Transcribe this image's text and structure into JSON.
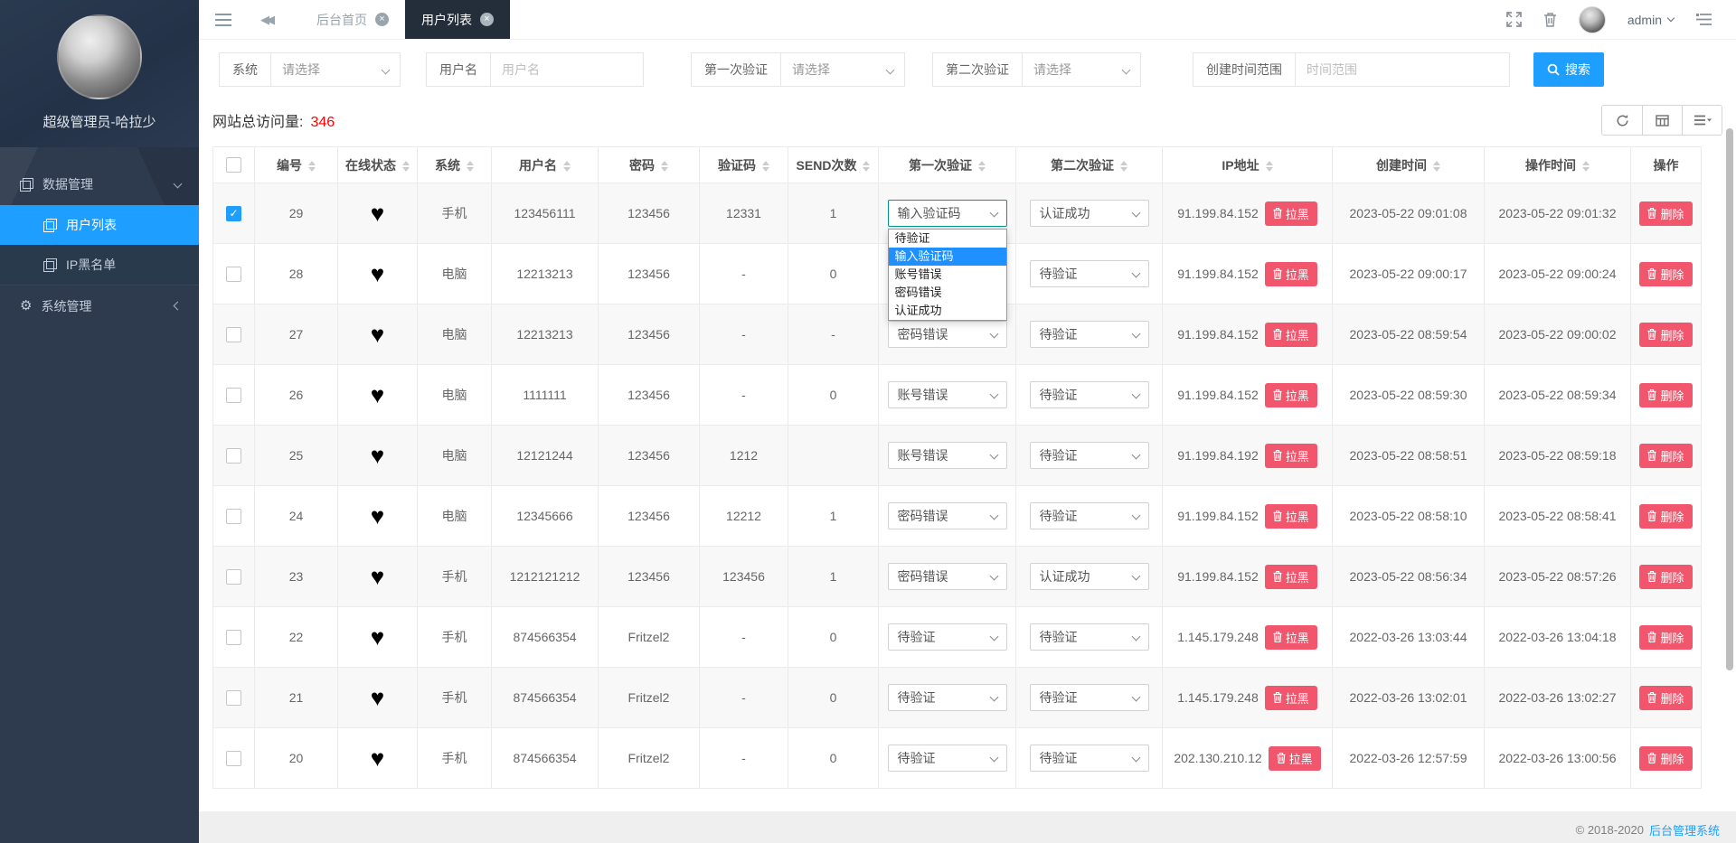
{
  "sidebar": {
    "user_name": "超级管理员-哈拉少",
    "item_data": "数据管理",
    "item_users": "用户列表",
    "item_ip": "IP黑名单",
    "item_system": "系统管理"
  },
  "header": {
    "tab_home": "后台首页",
    "tab_users": "用户列表",
    "admin": "admin"
  },
  "filters": {
    "system_label": "系统",
    "system_value": "请选择",
    "username_label": "用户名",
    "username_placeholder": "用户名",
    "first_label": "第一次验证",
    "first_value": "请选择",
    "second_label": "第二次验证",
    "second_value": "请选择",
    "created_label": "创建时间范围",
    "created_placeholder": "时间范围",
    "search_label": "搜索"
  },
  "stats": {
    "visits_label": "网站总访问量:",
    "visits_value": "346"
  },
  "table": {
    "headers": [
      "编号",
      "在线状态",
      "系统",
      "用户名",
      "密码",
      "验证码",
      "SEND次数",
      "第一次验证",
      "第二次验证",
      "IP地址",
      "创建时间",
      "操作时间",
      "操作"
    ],
    "block_label": "拉黑",
    "delete_label": "删除",
    "rows": [
      {
        "id": "29",
        "checked": true,
        "online": "♥",
        "system": "手机",
        "username": "123456111",
        "password": "123456",
        "code": "12331",
        "send": "1",
        "first": "输入验证码",
        "first_focused": true,
        "second": "认证成功",
        "ip": "91.199.84.152",
        "created": "2023-05-22 09:01:08",
        "operated": "2023-05-22 09:01:32"
      },
      {
        "id": "28",
        "checked": false,
        "online": "♥",
        "system": "电脑",
        "username": "12213213",
        "password": "123456",
        "code": "-",
        "send": "0",
        "first": "",
        "first_focused": false,
        "second": "待验证",
        "ip": "91.199.84.152",
        "created": "2023-05-22 09:00:17",
        "operated": "2023-05-22 09:00:24"
      },
      {
        "id": "27",
        "checked": false,
        "online": "♥",
        "system": "电脑",
        "username": "12213213",
        "password": "123456",
        "code": "-",
        "send": "-",
        "first": "密码错误",
        "first_focused": false,
        "second": "待验证",
        "ip": "91.199.84.152",
        "created": "2023-05-22 08:59:54",
        "operated": "2023-05-22 09:00:02"
      },
      {
        "id": "26",
        "checked": false,
        "online": "♥",
        "system": "电脑",
        "username": "1111111",
        "password": "123456",
        "code": "-",
        "send": "0",
        "first": "账号错误",
        "first_focused": false,
        "second": "待验证",
        "ip": "91.199.84.152",
        "created": "2023-05-22 08:59:30",
        "operated": "2023-05-22 08:59:34"
      },
      {
        "id": "25",
        "checked": false,
        "online": "♥",
        "system": "电脑",
        "username": "12121244",
        "password": "123456",
        "code": "1212",
        "send": "",
        "first": "账号错误",
        "first_focused": false,
        "second": "待验证",
        "ip": "91.199.84.192",
        "created": "2023-05-22 08:58:51",
        "operated": "2023-05-22 08:59:18"
      },
      {
        "id": "24",
        "checked": false,
        "online": "♥",
        "system": "电脑",
        "username": "12345666",
        "password": "123456",
        "code": "12212",
        "send": "1",
        "first": "密码错误",
        "first_focused": false,
        "second": "待验证",
        "ip": "91.199.84.152",
        "created": "2023-05-22 08:58:10",
        "operated": "2023-05-22 08:58:41"
      },
      {
        "id": "23",
        "checked": false,
        "online": "♥",
        "system": "手机",
        "username": "1212121212",
        "password": "123456",
        "code": "123456",
        "send": "1",
        "first": "密码错误",
        "first_focused": false,
        "second": "认证成功",
        "ip": "91.199.84.152",
        "created": "2023-05-22 08:56:34",
        "operated": "2023-05-22 08:57:26"
      },
      {
        "id": "22",
        "checked": false,
        "online": "♥",
        "system": "手机",
        "username": "874566354",
        "password": "Fritzel2",
        "code": "-",
        "send": "0",
        "first": "待验证",
        "first_focused": false,
        "second": "待验证",
        "ip": "1.145.179.248",
        "created": "2022-03-26 13:03:44",
        "operated": "2022-03-26 13:04:18"
      },
      {
        "id": "21",
        "checked": false,
        "online": "♥",
        "system": "手机",
        "username": "874566354",
        "password": "Fritzel2",
        "code": "-",
        "send": "0",
        "first": "待验证",
        "first_focused": false,
        "second": "待验证",
        "ip": "1.145.179.248",
        "created": "2022-03-26 13:02:01",
        "operated": "2022-03-26 13:02:27"
      },
      {
        "id": "20",
        "checked": false,
        "online": "♥",
        "system": "手机",
        "username": "874566354",
        "password": "Fritzel2",
        "code": "-",
        "send": "0",
        "first": "待验证",
        "first_focused": false,
        "second": "待验证",
        "ip": "202.130.210.12",
        "created": "2022-03-26 12:57:59",
        "operated": "2022-03-26 13:00:56"
      }
    ]
  },
  "dropdown": {
    "row_id": "29",
    "options": [
      "待验证",
      "输入验证码",
      "账号错误",
      "密码错误",
      "认证成功"
    ],
    "selected_index": 1
  },
  "footer": {
    "copyright": "© 2018-2020",
    "brand": "后台管理系统"
  },
  "colors": {
    "accent": "#1e9fff",
    "danger": "#f2566d",
    "sidebar": "#2e3b4e",
    "active_tab": "#242e3a",
    "focus_border": "#009688",
    "stat_red": "#ff0000"
  }
}
